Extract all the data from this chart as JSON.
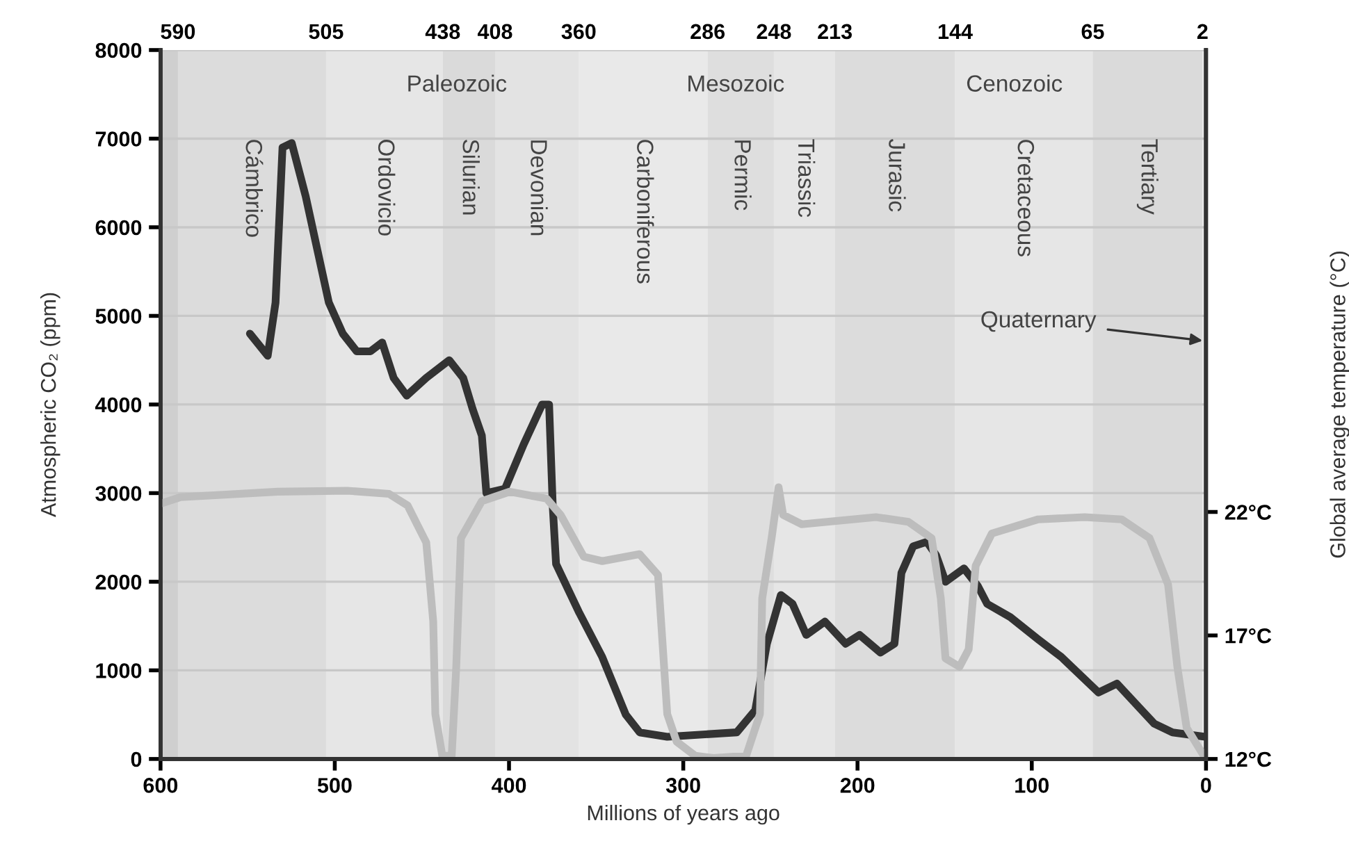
{
  "chart_data": {
    "type": "line",
    "xlabel": "Millions of years ago",
    "ylabel": "Atmospheric CO₂ (ppm)",
    "y2label": "Global average temperature (°C)",
    "xlim": [
      600,
      0
    ],
    "xticks": [
      600,
      500,
      400,
      300,
      200,
      100,
      0
    ],
    "x2lim": [
      600,
      0
    ],
    "x2ticks": [
      590,
      505,
      438,
      408,
      360,
      286,
      248,
      213,
      144,
      65,
      2
    ],
    "ylim": [
      0,
      8000
    ],
    "yticks": [
      0,
      1000,
      2000,
      3000,
      4000,
      5000,
      6000,
      7000,
      8000
    ],
    "y2lim": [
      12,
      40.7
    ],
    "y2ticks": [
      {
        "value": 12,
        "label": "12°C"
      },
      {
        "value": 17,
        "label": "17°C"
      },
      {
        "value": 22,
        "label": "22°C"
      }
    ],
    "grid": "y",
    "line_style": "solid",
    "marker": "none",
    "bands": [
      {
        "axis": "x",
        "from": 600,
        "to": 590,
        "label": null,
        "color": "#cfcfcf"
      },
      {
        "axis": "x",
        "from": 590,
        "to": 505,
        "label": "Cámbrico",
        "color": "#dcdcdc"
      },
      {
        "axis": "x",
        "from": 505,
        "to": 438,
        "label": "Ordovicio",
        "color": "#e6e6e6"
      },
      {
        "axis": "x",
        "from": 438,
        "to": 408,
        "label": "Silurian",
        "color": "#dadada"
      },
      {
        "axis": "x",
        "from": 408,
        "to": 360,
        "label": "Devonian",
        "color": "#e3e3e3"
      },
      {
        "axis": "x",
        "from": 360,
        "to": 286,
        "label": "Carboniferous",
        "color": "#e9e9e9"
      },
      {
        "axis": "x",
        "from": 286,
        "to": 248,
        "label": "Permic",
        "color": "#dedede"
      },
      {
        "axis": "x",
        "from": 248,
        "to": 213,
        "label": "Triassic",
        "color": "#e6e6e6"
      },
      {
        "axis": "x",
        "from": 213,
        "to": 144,
        "label": "Jurasic",
        "color": "#dcdcdc"
      },
      {
        "axis": "x",
        "from": 144,
        "to": 65,
        "label": "Cretaceous",
        "color": "#e6e6e6"
      },
      {
        "axis": "x",
        "from": 65,
        "to": 2,
        "label": "Tertiary",
        "color": "#dadada"
      }
    ],
    "annotations": [
      "Paleozoic",
      "Mesozoic",
      "Cenozoic",
      {
        "text": "Quaternary",
        "x": 2,
        "y": 4720
      }
    ],
    "series": [
      {
        "color": "#bdbdbd",
        "axis": "y2",
        "x": [
          599.2,
          588.6,
          532.7,
          492.8,
          468.8,
          458.2,
          447.5,
          443.5,
          442.3,
          438.3,
          432.9,
          430.3,
          427.6,
          415.6,
          399.6,
          378.4,
          370.4,
          357.1,
          346.5,
          325.1,
          314.5,
          309.2,
          303.8,
          293.2,
          282.6,
          263.9,
          256,
          254.7,
          249.3,
          245.3,
          242.7,
          232,
          189.4,
          170.8,
          157.5,
          152.2,
          149.5,
          141.5,
          136.2,
          132.2,
          122.9,
          96.3,
          69.7,
          48.4,
          32.4,
          21.8,
          16.4,
          11.1,
          0.5
        ],
        "values": [
          22.35,
          22.6,
          22.82,
          22.86,
          22.73,
          22.26,
          20.76,
          17.57,
          13.82,
          12.13,
          12.13,
          15.7,
          20.94,
          22.44,
          22.82,
          22.54,
          21.88,
          20.19,
          20.01,
          20.29,
          19.45,
          13.82,
          12.7,
          12.13,
          12.04,
          12.13,
          13.82,
          18.5,
          20.94,
          23.0,
          21.88,
          21.5,
          21.79,
          21.6,
          20.94,
          18.5,
          16.07,
          15.73,
          16.44,
          19.82,
          21.13,
          21.7,
          21.79,
          21.7,
          20.94,
          19.07,
          15.7,
          13.26,
          12.04
        ]
      },
      {
        "color": "#333333",
        "axis": "y",
        "x": [
          548.7,
          538.5,
          534,
          530,
          524.7,
          516.7,
          503.4,
          495.4,
          487.4,
          479.5,
          472.8,
          466.2,
          458.7,
          447.5,
          434.3,
          426.3,
          420.9,
          415.6,
          413,
          402.3,
          391.6,
          381,
          377,
          374.9,
          373,
          359.7,
          346.5,
          333,
          325,
          309.2,
          269.3,
          258.7,
          252,
          244,
          237.3,
          229.4,
          218.7,
          206.8,
          198.8,
          186.8,
          178.8,
          174.8,
          168.1,
          160.2,
          154.9,
          149.5,
          138.9,
          130.9,
          125.6,
          112.3,
          96.3,
          83,
          61.7,
          51.1,
          29.8,
          19.2,
          0.5
        ],
        "values": [
          4800,
          4550,
          5150,
          6900,
          6950,
          6350,
          5150,
          4800,
          4600,
          4600,
          4700,
          4300,
          4100,
          4300,
          4500,
          4300,
          3950,
          3650,
          3000,
          3050,
          3550,
          4000,
          4000,
          2850,
          2200,
          1650,
          1150,
          500,
          300,
          250,
          300,
          550,
          1300,
          1850,
          1750,
          1400,
          1550,
          1300,
          1400,
          1200,
          1300,
          2100,
          2400,
          2450,
          2300,
          2000,
          2150,
          1950,
          1750,
          1600,
          1350,
          1150,
          750,
          850,
          400,
          300,
          250
        ]
      }
    ]
  }
}
